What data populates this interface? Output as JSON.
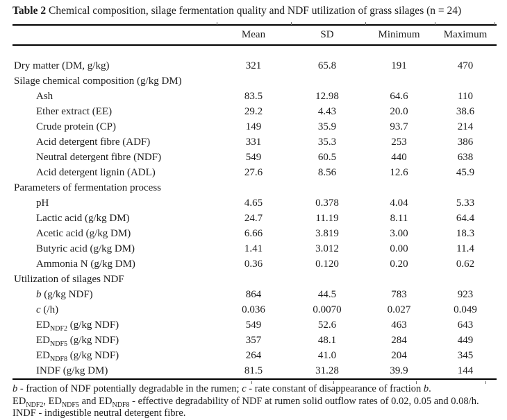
{
  "page": {
    "background": "#ffffff",
    "text_color": "#1c1c1c",
    "rule_color": "#000000"
  },
  "table": {
    "title_prefix": "Table 2",
    "title": " Chemical composition, silage fermentation quality and NDF utilization of grass silages (n = 24)",
    "columns": [
      "Mean",
      "SD",
      "Minimum",
      "Maximum"
    ],
    "rows": [
      {
        "type": "data",
        "indent": 0,
        "label_parts": [
          {
            "t": "Dry matter (DM, g/kg)"
          }
        ],
        "values": [
          "321",
          "65.8",
          "191",
          "470"
        ]
      },
      {
        "type": "section",
        "label_parts": [
          {
            "t": "Silage chemical composition (g/kg DM)"
          }
        ]
      },
      {
        "type": "data",
        "indent": 1,
        "label_parts": [
          {
            "t": "Ash"
          }
        ],
        "values": [
          "83.5",
          "12.98",
          "64.6",
          "110"
        ]
      },
      {
        "type": "data",
        "indent": 1,
        "label_parts": [
          {
            "t": "Ether extract (EE)"
          }
        ],
        "values": [
          "29.2",
          "4.43",
          "20.0",
          "38.6"
        ]
      },
      {
        "type": "data",
        "indent": 1,
        "label_parts": [
          {
            "t": "Crude protein (CP)"
          }
        ],
        "values": [
          "149",
          "35.9",
          "93.7",
          "214"
        ]
      },
      {
        "type": "data",
        "indent": 1,
        "label_parts": [
          {
            "t": "Acid detergent fibre (ADF)"
          }
        ],
        "values": [
          "331",
          "35.3",
          "253",
          "386"
        ]
      },
      {
        "type": "data",
        "indent": 1,
        "label_parts": [
          {
            "t": "Neutral detergent fibre (NDF)"
          }
        ],
        "values": [
          "549",
          "60.5",
          "440",
          "638"
        ]
      },
      {
        "type": "data",
        "indent": 1,
        "label_parts": [
          {
            "t": "Acid detergent lignin (ADL)"
          }
        ],
        "values": [
          "27.6",
          "8.56",
          "12.6",
          "45.9"
        ]
      },
      {
        "type": "section",
        "label_parts": [
          {
            "t": "Parameters of fermentation process"
          }
        ]
      },
      {
        "type": "data",
        "indent": 1,
        "label_parts": [
          {
            "t": "pH"
          }
        ],
        "values": [
          "4.65",
          "0.378",
          "4.04",
          "5.33"
        ]
      },
      {
        "type": "data",
        "indent": 1,
        "label_parts": [
          {
            "t": "Lactic acid (g/kg DM)"
          }
        ],
        "values": [
          "24.7",
          "11.19",
          "8.11",
          "64.4"
        ]
      },
      {
        "type": "data",
        "indent": 1,
        "label_parts": [
          {
            "t": "Acetic acid (g/kg DM)"
          }
        ],
        "values": [
          "6.66",
          "3.819",
          "3.00",
          "18.3"
        ]
      },
      {
        "type": "data",
        "indent": 1,
        "label_parts": [
          {
            "t": "Butyric acid (g/kg DM)"
          }
        ],
        "values": [
          "1.41",
          "3.012",
          "0.00",
          "11.4"
        ]
      },
      {
        "type": "data",
        "indent": 1,
        "label_parts": [
          {
            "t": "Ammonia N (g/kg DM)"
          }
        ],
        "values": [
          "0.36",
          "0.120",
          "0.20",
          "0.62"
        ]
      },
      {
        "type": "section",
        "label_parts": [
          {
            "t": "Utilization of silages NDF"
          }
        ]
      },
      {
        "type": "data",
        "indent": 1,
        "label_parts": [
          {
            "t": "b",
            "s": "i"
          },
          {
            "t": " (g/kg NDF)"
          }
        ],
        "values": [
          "864",
          "44.5",
          "783",
          "923"
        ]
      },
      {
        "type": "data",
        "indent": 1,
        "label_parts": [
          {
            "t": "c",
            "s": "i"
          },
          {
            "t": " (/h)"
          }
        ],
        "values": [
          "0.036",
          "0.0070",
          "0.027",
          "0.049"
        ]
      },
      {
        "type": "data",
        "indent": 1,
        "label_parts": [
          {
            "t": "ED"
          },
          {
            "t": "NDF2",
            "s": "sub"
          },
          {
            "t": " (g/kg NDF)"
          }
        ],
        "values": [
          "549",
          "52.6",
          "463",
          "643"
        ]
      },
      {
        "type": "data",
        "indent": 1,
        "label_parts": [
          {
            "t": "ED"
          },
          {
            "t": "NDF5",
            "s": "sub"
          },
          {
            "t": " (g/kg NDF)"
          }
        ],
        "values": [
          "357",
          "48.1",
          "284",
          "449"
        ]
      },
      {
        "type": "data",
        "indent": 1,
        "label_parts": [
          {
            "t": "ED"
          },
          {
            "t": "NDF8",
            "s": "sub"
          },
          {
            "t": " (g/kg NDF)"
          }
        ],
        "values": [
          "264",
          "41.0",
          "204",
          "345"
        ]
      },
      {
        "type": "data",
        "indent": 1,
        "label_parts": [
          {
            "t": "INDF (g/kg DM)"
          }
        ],
        "values": [
          "81.5",
          "31.28",
          "39.9",
          "144"
        ]
      }
    ],
    "footnotes": [
      {
        "parts": [
          {
            "t": "b",
            "s": "i"
          },
          {
            "t": " - fraction of NDF potentially degradable in the rumen; "
          },
          {
            "t": "c",
            "s": "i"
          },
          {
            "t": " - rate constant of disappearance of fraction "
          },
          {
            "t": "b",
            "s": "i"
          },
          {
            "t": "."
          }
        ]
      },
      {
        "parts": [
          {
            "t": "ED"
          },
          {
            "t": "NDF2",
            "s": "sub"
          },
          {
            "t": ", ED"
          },
          {
            "t": "NDF5",
            "s": "sub"
          },
          {
            "t": " and ED"
          },
          {
            "t": "NDF8",
            "s": "sub"
          },
          {
            "t": " - effective degradability of NDF at rumen solid outflow rates of 0.02, 0.05 and 0.08/h."
          }
        ]
      },
      {
        "parts": [
          {
            "t": "INDF - indigestible neutral detergent fibre."
          }
        ]
      }
    ]
  }
}
